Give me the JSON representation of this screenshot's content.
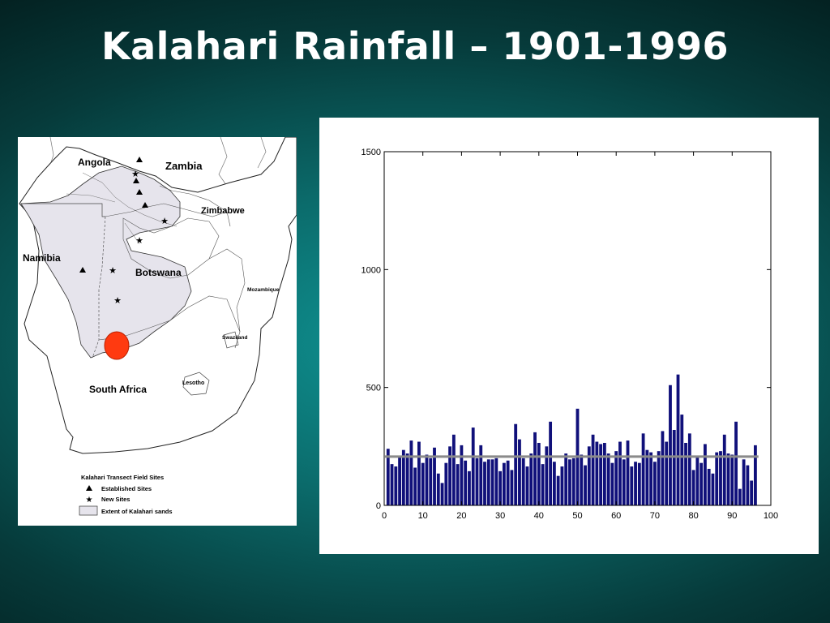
{
  "slide": {
    "title": "Kalahari Rainfall – 1901-1996"
  },
  "map": {
    "labels": {
      "angola": "Angola",
      "zambia": "Zambia",
      "zimbabwe": "Zimbabwe",
      "namibia": "Namibia",
      "botswana": "Botswana",
      "mozambique": "Mozambique",
      "swaziland": "Swaziland",
      "lesotho": "Lesotho",
      "south_africa": "South Africa"
    },
    "legend": {
      "title": "Kalahari Transect Field Sites",
      "established": "Established Sites",
      "new": "New Sites",
      "extent": "Extent of Kalahari sands"
    },
    "colors": {
      "sands": "#e6e4ec",
      "marker": "#ff3a10"
    }
  },
  "chart_data": {
    "type": "bar",
    "title": "",
    "xlabel": "",
    "ylabel": "",
    "xlim": [
      0,
      100
    ],
    "ylim": [
      0,
      1500
    ],
    "xticks": [
      0,
      10,
      20,
      30,
      40,
      50,
      60,
      70,
      80,
      90,
      100
    ],
    "yticks": [
      0,
      500,
      1000,
      1500
    ],
    "grid": false,
    "bar_color": "#10107a",
    "mean_line": {
      "value": 207,
      "color": "#8a8a8a"
    },
    "x": [
      1,
      2,
      3,
      4,
      5,
      6,
      7,
      8,
      9,
      10,
      11,
      12,
      13,
      14,
      15,
      16,
      17,
      18,
      19,
      20,
      21,
      22,
      23,
      24,
      25,
      26,
      27,
      28,
      29,
      30,
      31,
      32,
      33,
      34,
      35,
      36,
      37,
      38,
      39,
      40,
      41,
      42,
      43,
      44,
      45,
      46,
      47,
      48,
      49,
      50,
      51,
      52,
      53,
      54,
      55,
      56,
      57,
      58,
      59,
      60,
      61,
      62,
      63,
      64,
      65,
      66,
      67,
      68,
      69,
      70,
      71,
      72,
      73,
      74,
      75,
      76,
      77,
      78,
      79,
      80,
      81,
      82,
      83,
      84,
      85,
      86,
      87,
      88,
      89,
      90,
      91,
      92,
      93,
      94,
      95,
      96
    ],
    "values": [
      240,
      175,
      165,
      205,
      235,
      220,
      275,
      160,
      270,
      180,
      215,
      200,
      245,
      135,
      95,
      180,
      250,
      300,
      175,
      255,
      190,
      145,
      330,
      200,
      255,
      185,
      195,
      195,
      200,
      145,
      180,
      190,
      150,
      345,
      280,
      200,
      165,
      220,
      310,
      265,
      175,
      250,
      355,
      185,
      125,
      165,
      220,
      195,
      200,
      410,
      215,
      170,
      250,
      300,
      270,
      260,
      265,
      220,
      180,
      230,
      270,
      195,
      275,
      165,
      185,
      180,
      305,
      235,
      225,
      185,
      230,
      315,
      270,
      510,
      320,
      555,
      385,
      265,
      305,
      150,
      205,
      180,
      260,
      155,
      135,
      225,
      230,
      300,
      220,
      215,
      355,
      70,
      195,
      170,
      105,
      255
    ]
  }
}
